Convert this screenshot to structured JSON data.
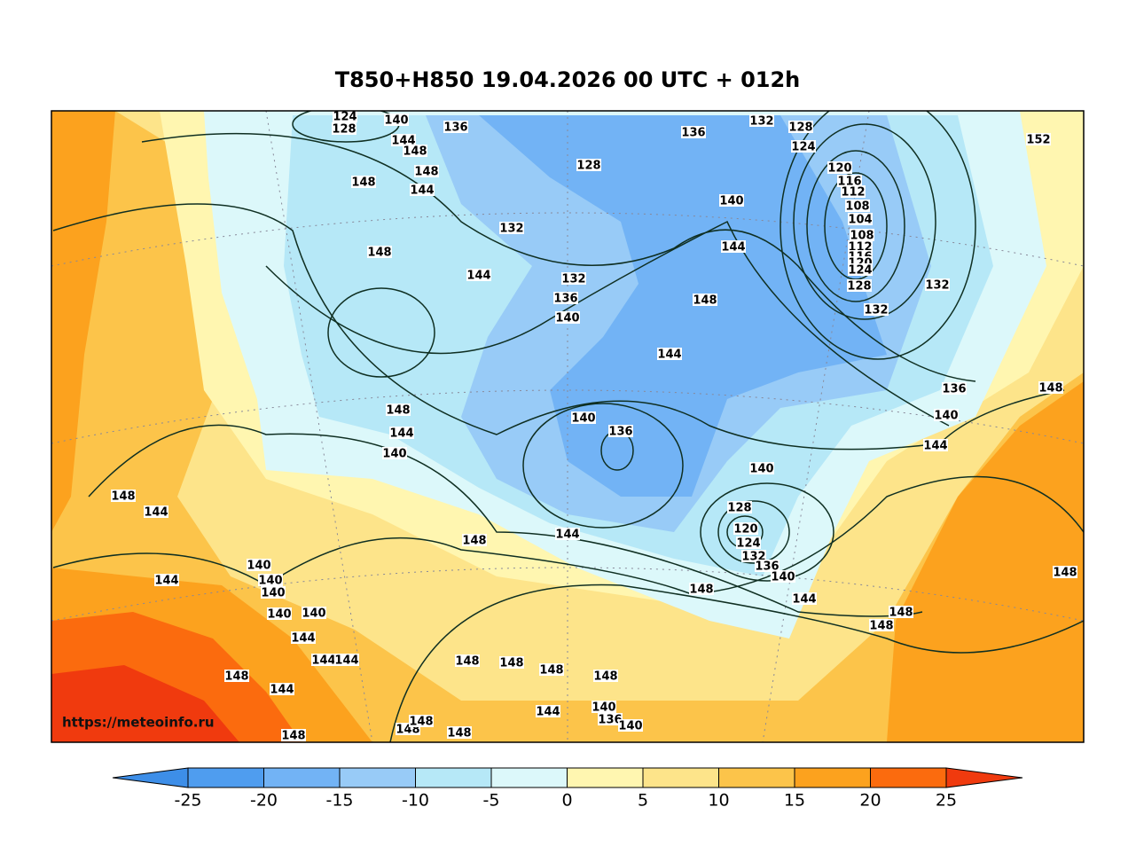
{
  "title": "T850+H850 19.04.2026 00 UTC + 012h",
  "watermark": "https://meteoinfo.ru",
  "colorbar": {
    "ticks": [
      -25,
      -20,
      -15,
      -10,
      -5,
      0,
      5,
      10,
      15,
      20,
      25
    ],
    "colors": [
      "#3d8ee8",
      "#4f9def",
      "#72b3f5",
      "#98cbf7",
      "#b6e8f7",
      "#dcf8fa",
      "#fff6b0",
      "#fde48a",
      "#fcc44a",
      "#fca21e",
      "#fb6b0e",
      "#f03a0e"
    ]
  },
  "contour_labels": [
    124,
    128,
    140,
    144,
    148,
    148,
    144,
    148,
    136,
    128,
    132,
    136,
    132,
    128,
    124,
    120,
    116,
    112,
    108,
    104,
    108,
    112,
    116,
    120,
    124,
    128,
    132,
    132,
    152,
    140,
    144,
    144,
    132,
    136,
    140,
    148,
    148,
    144,
    148,
    136,
    140,
    144,
    148,
    144,
    140,
    140,
    136,
    140,
    128,
    120,
    124,
    132,
    136,
    140,
    144,
    148,
    144,
    148,
    148,
    144,
    144,
    140,
    140,
    140,
    140,
    140,
    144,
    144,
    144,
    148,
    144,
    148,
    148,
    148,
    148,
    148,
    144,
    140,
    136,
    140,
    148,
    148,
    148,
    148,
    148,
    148
  ]
}
